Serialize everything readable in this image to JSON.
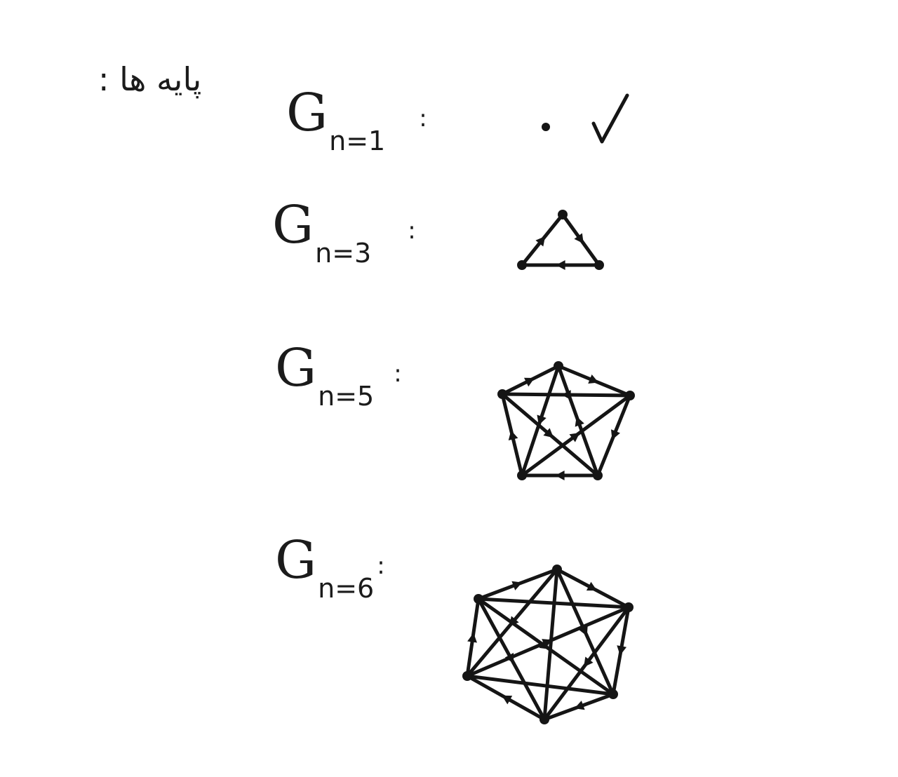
{
  "heading": "پایه ها :",
  "bases": [
    {
      "id": "g1",
      "label_main": "G",
      "label_sub": "n=1",
      "colon": ":",
      "vertices": 1,
      "checked": true
    },
    {
      "id": "g3",
      "label_main": "G",
      "label_sub": "n=3",
      "colon": ":",
      "vertices": 3
    },
    {
      "id": "g5",
      "label_main": "G",
      "label_sub": "n=5",
      "colon": ":",
      "vertices": 5
    },
    {
      "id": "g6",
      "label_main": "G",
      "label_sub": "n=6",
      "colon": ":",
      "vertices": 6
    }
  ],
  "colors": {
    "ink": "#151515",
    "paper": "#ffffff"
  },
  "icons": {
    "check": "check-icon"
  }
}
